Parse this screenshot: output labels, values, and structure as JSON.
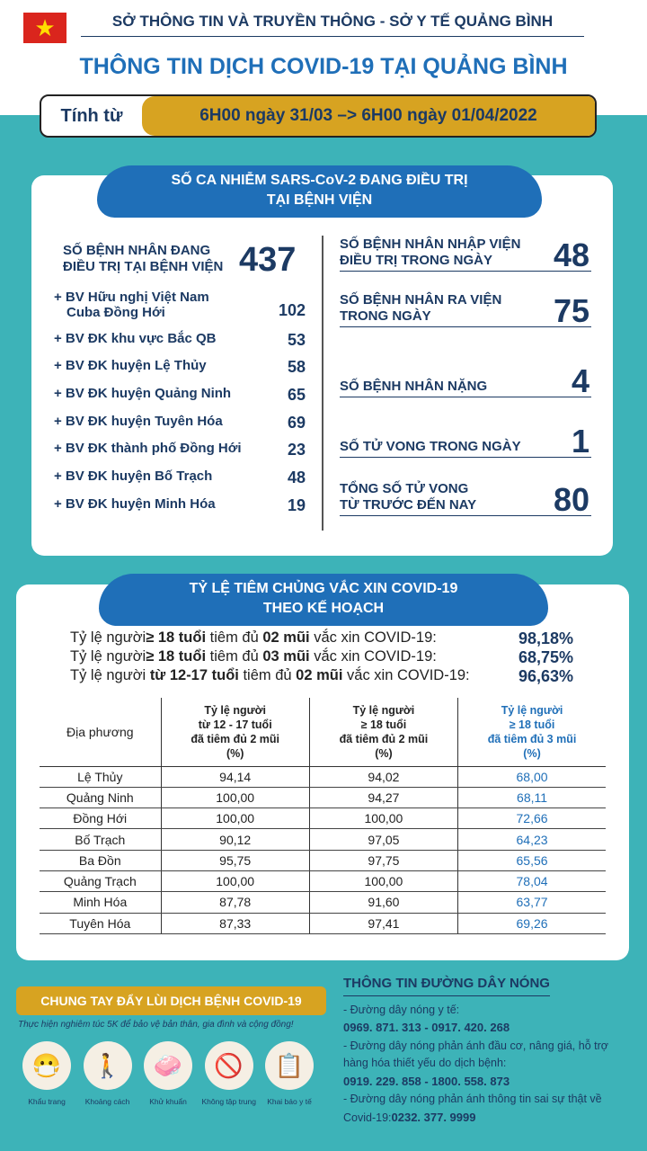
{
  "header": {
    "flag_star": "★",
    "org": "SỞ THÔNG TIN VÀ TRUYỀN THÔNG - SỞ Y TẾ QUẢNG BÌNH",
    "title": "THÔNG TIN DỊCH COVID-19 TẠI QUẢNG BÌNH",
    "range_label": "Tính từ",
    "range_value": "6H00 ngày 31/03 –> 6H00 ngày 01/04/2022"
  },
  "treatment": {
    "title1": "SỐ CA NHIỄM SARS-CoV-2 ĐANG ĐIỀU TRỊ",
    "title2": "TẠI BỆNH VIỆN",
    "total_label1": "SỐ BỆNH NHÂN ĐANG",
    "total_label2": "ĐIỀU TRỊ TẠI BỆNH VIỆN",
    "total": "437",
    "hospitals": [
      {
        "name": "+ BV Hữu nghị Việt Nam",
        "name2": "Cuba Đồng Hới",
        "count": "102"
      },
      {
        "name": "+ BV ĐK khu vực Bắc QB",
        "count": "53"
      },
      {
        "name": "+ BV ĐK huyện Lệ Thủy",
        "count": "58"
      },
      {
        "name": "+ BV ĐK huyện Quảng Ninh",
        "count": "65"
      },
      {
        "name": "+ BV ĐK huyện Tuyên Hóa",
        "count": "69"
      },
      {
        "name": "+ BV ĐK thành phố Đồng Hới",
        "count": "23"
      },
      {
        "name": "+ BV ĐK huyện Bố Trạch",
        "count": "48"
      },
      {
        "name": "+ BV ĐK huyện Minh Hóa",
        "count": "19"
      }
    ],
    "stats": [
      {
        "l1": "SỐ BỆNH NHÂN NHẬP VIỆN",
        "l2": "ĐIỀU TRỊ TRONG NGÀY",
        "v": "48"
      },
      {
        "l1": "SỐ BỆNH NHÂN RA VIỆN",
        "l2": "TRONG NGÀY",
        "v": "75"
      },
      {
        "l1": "",
        "l2": "SỐ BỆNH NHÂN NẶNG",
        "v": "4"
      },
      {
        "l1": "",
        "l2": "SỐ TỬ VONG TRONG NGÀY",
        "v": "1"
      },
      {
        "l1": "TỔNG SỐ TỬ VONG",
        "l2": "TỪ TRƯỚC ĐẾN NAY",
        "v": "80"
      }
    ]
  },
  "vaccine": {
    "title1": "TỶ LỆ TIÊM CHỦNG VẮC XIN COVID-19",
    "title2": "THEO KẾ HOẠCH",
    "summary": [
      {
        "a": "Tỷ lệ người",
        "b": "≥ 18 tuổi",
        "c": " tiêm đủ ",
        "d": "02 mũi",
        "e": " vắc xin COVID-19:",
        "v": "98,18%"
      },
      {
        "a": "Tỷ lệ người",
        "b": "≥ 18 tuổi",
        "c": " tiêm đủ ",
        "d": "03 mũi",
        "e": " vắc xin COVID-19:",
        "v": "68,75%"
      },
      {
        "a": "Tỷ lệ người ",
        "b": "từ 12-17 tuổi",
        "c": " tiêm đủ ",
        "d": "02 mũi",
        "e": " vắc xin COVID-19:",
        "v": "96,63%"
      }
    ],
    "columns": [
      [
        "Địa phương"
      ],
      [
        "Tỷ lệ người",
        "từ 12 - 17 tuổi",
        "đã tiêm đủ 2 mũi",
        "(%)"
      ],
      [
        "Tỷ lệ người",
        "≥ 18 tuổi",
        "đã tiêm đủ 2 mũi",
        "(%)"
      ],
      [
        "Tỷ lệ người",
        "≥ 18 tuổi",
        "đã tiêm đủ 3 mũi",
        "(%)"
      ]
    ],
    "rows": [
      [
        "Lệ Thủy",
        "94,14",
        "94,02",
        "68,00"
      ],
      [
        "Quảng Ninh",
        "100,00",
        "94,27",
        "68,11"
      ],
      [
        "Đồng Hới",
        "100,00",
        "100,00",
        "72,66"
      ],
      [
        "Bố Trạch",
        "90,12",
        "97,05",
        "64,23"
      ],
      [
        "Ba Đồn",
        "95,75",
        "97,75",
        "65,56"
      ],
      [
        "Quảng Trạch",
        "100,00",
        "100,00",
        "78,04"
      ],
      [
        "Minh Hóa",
        "87,78",
        "91,60",
        "63,77"
      ],
      [
        "Tuyên Hóa",
        "87,33",
        "97,41",
        "69,26"
      ]
    ]
  },
  "footer": {
    "banner": "CHUNG TAY ĐẨY LÙI DỊCH BỆNH COVID-19",
    "slogan": "Thực hiện nghiêm túc 5K để bảo vệ bản thân, gia đình và cộng đồng!",
    "icons": [
      {
        "label": "Khẩu trang",
        "glyph": "😷"
      },
      {
        "label": "Khoảng cách",
        "glyph": "🚶"
      },
      {
        "label": "Khử khuẩn",
        "glyph": "🧼"
      },
      {
        "label": "Không tập trung",
        "glyph": "🚫"
      },
      {
        "label": "Khai báo y tế",
        "glyph": "📋"
      }
    ],
    "hotline_title": "THÔNG TIN ĐƯỜNG DÂY NÓNG",
    "h1": "- Đường dây nóng y tế:",
    "p1": "0969. 871. 313  -  0917. 420. 268",
    "h2": "- Đường dây nóng phản ánh đầu cơ, nâng giá, hỗ trợ hàng hóa thiết yếu do dịch bệnh:",
    "p2": "0919. 229. 858  -  1800. 558. 873",
    "h3": "- Đường dây nóng phản ánh thông tin sai sự thật về Covid-19:",
    "p3": "0232. 377. 9999"
  }
}
